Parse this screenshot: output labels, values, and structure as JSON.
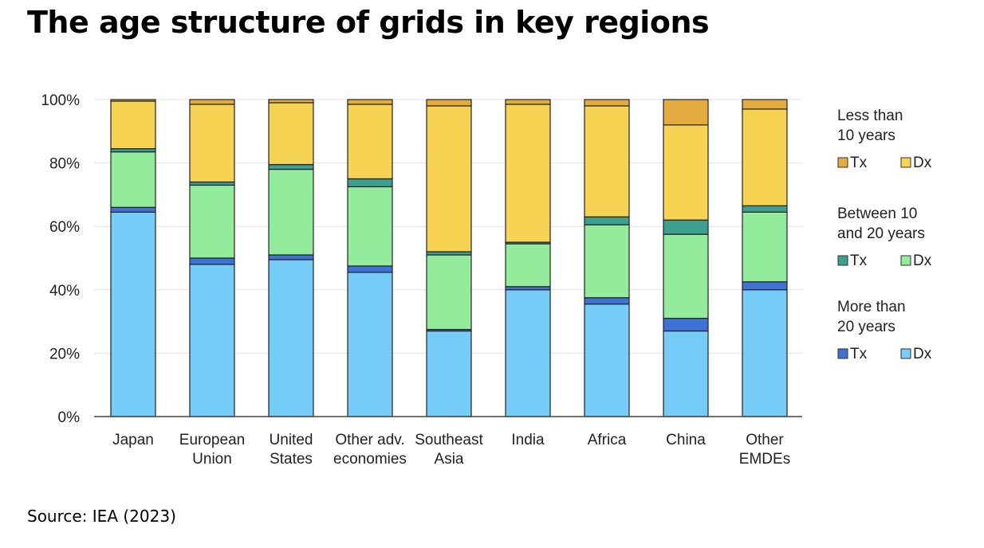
{
  "title": "The age structure of grids in key regions",
  "source": "Source: IEA (2023)",
  "chart_data": {
    "type": "bar",
    "stacked": true,
    "categories": [
      [
        "Japan"
      ],
      [
        "European",
        "Union"
      ],
      [
        "United",
        "States"
      ],
      [
        "Other adv.",
        "economies"
      ],
      [
        "Southeast",
        "Asia"
      ],
      [
        "India"
      ],
      [
        "Africa"
      ],
      [
        "China"
      ],
      [
        "Other",
        "EMDEs"
      ]
    ],
    "ylim": [
      0,
      100
    ],
    "yticks": [
      "0%",
      "20%",
      "40%",
      "60%",
      "80%",
      "100%"
    ],
    "ytick_values": [
      0,
      20,
      40,
      60,
      80,
      100
    ],
    "grid": true,
    "legend_position": "right",
    "series": [
      {
        "group": "More than 20 years",
        "name": "Dx",
        "color": "#75cdf7",
        "values": [
          64.5,
          48.0,
          49.5,
          45.5,
          27.0,
          40.0,
          35.5,
          27.0,
          40.0
        ]
      },
      {
        "group": "More than 20 years",
        "name": "Tx",
        "color": "#3f72d6",
        "values": [
          1.5,
          2.0,
          1.5,
          2.0,
          0.5,
          1.0,
          2.0,
          4.0,
          2.5
        ]
      },
      {
        "group": "Between 10 and 20 years",
        "name": "Dx",
        "color": "#92ec9c",
        "values": [
          17.5,
          23.0,
          27.0,
          25.0,
          23.5,
          13.5,
          23.0,
          26.5,
          22.0
        ]
      },
      {
        "group": "Between 10 and 20 years",
        "name": "Tx",
        "color": "#3c9f8f",
        "values": [
          1.0,
          1.0,
          1.5,
          2.5,
          1.0,
          0.5,
          2.5,
          4.5,
          2.0
        ]
      },
      {
        "group": "Less than 10 years",
        "name": "Dx",
        "color": "#f7d353",
        "values": [
          15.0,
          24.5,
          19.5,
          23.5,
          46.0,
          43.5,
          35.0,
          30.0,
          30.5
        ]
      },
      {
        "group": "Less than 10 years",
        "name": "Tx",
        "color": "#e3ac3e",
        "values": [
          0.5,
          1.5,
          1.0,
          1.5,
          2.0,
          1.5,
          2.0,
          8.0,
          3.0
        ]
      }
    ],
    "legend": [
      {
        "heading": [
          "Less than",
          "10 years"
        ],
        "items": [
          {
            "label": "Tx",
            "color": "#e3ac3e"
          },
          {
            "label": "Dx",
            "color": "#f7d353"
          }
        ]
      },
      {
        "heading": [
          "Between 10",
          "and 20 years"
        ],
        "items": [
          {
            "label": "Tx",
            "color": "#3c9f8f"
          },
          {
            "label": "Dx",
            "color": "#92ec9c"
          }
        ]
      },
      {
        "heading": [
          "More than",
          "20 years"
        ],
        "items": [
          {
            "label": "Tx",
            "color": "#3f72d6"
          },
          {
            "label": "Dx",
            "color": "#75cdf7"
          }
        ]
      }
    ]
  }
}
